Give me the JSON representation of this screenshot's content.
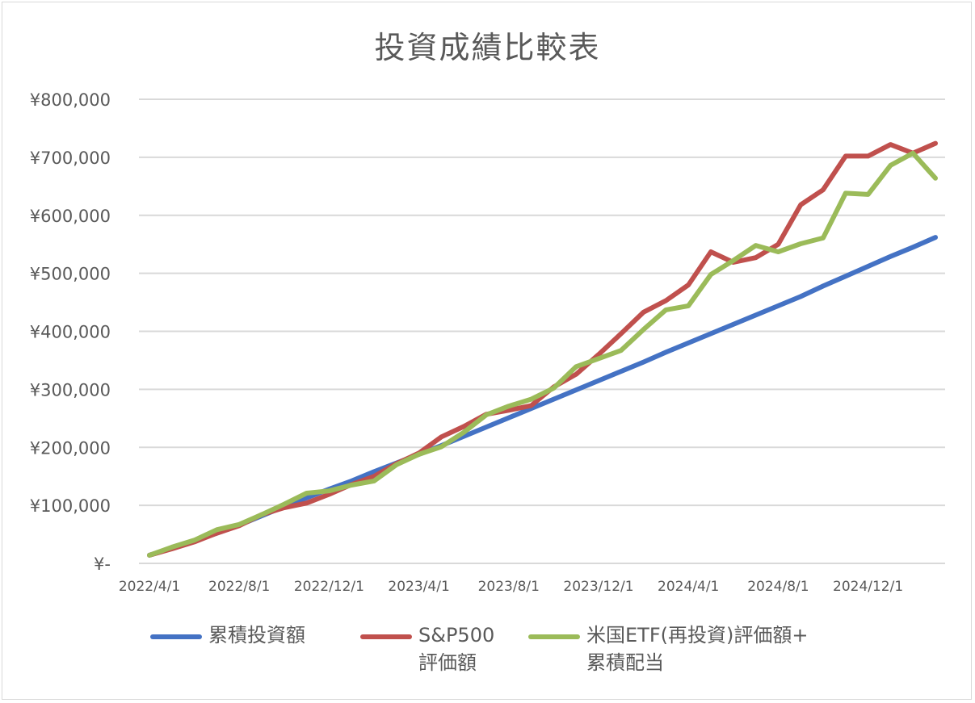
{
  "chart_data": {
    "type": "line",
    "title": "投資成績比較表",
    "xlabel": "",
    "ylabel": "",
    "ylim": [
      0,
      800000
    ],
    "y_ticks": [
      {
        "value": 0,
        "label": "¥-"
      },
      {
        "value": 100000,
        "label": "¥100,000"
      },
      {
        "value": 200000,
        "label": "¥200,000"
      },
      {
        "value": 300000,
        "label": "¥300,000"
      },
      {
        "value": 400000,
        "label": "¥400,000"
      },
      {
        "value": 500000,
        "label": "¥500,000"
      },
      {
        "value": 600000,
        "label": "¥600,000"
      },
      {
        "value": 700000,
        "label": "¥700,000"
      },
      {
        "value": 800000,
        "label": "¥800,000"
      }
    ],
    "x": [
      "2022/4/1",
      "2022/5/1",
      "2022/6/1",
      "2022/7/1",
      "2022/8/1",
      "2022/9/1",
      "2022/10/1",
      "2022/11/1",
      "2022/12/1",
      "2023/1/1",
      "2023/2/1",
      "2023/3/1",
      "2023/4/1",
      "2023/5/1",
      "2023/6/1",
      "2023/7/1",
      "2023/8/1",
      "2023/9/1",
      "2023/10/1",
      "2023/11/1",
      "2023/12/1",
      "2024/1/1",
      "2024/2/1",
      "2024/3/1",
      "2024/4/1",
      "2024/5/1",
      "2024/6/1",
      "2024/7/1",
      "2024/8/1",
      "2024/9/1",
      "2024/10/1",
      "2024/11/1",
      "2024/12/1",
      "2025/1/1",
      "2025/2/1",
      "2025/3/1"
    ],
    "x_tick_labels": [
      "2022/4/1",
      "2022/8/1",
      "2022/12/1",
      "2023/4/1",
      "2023/8/1",
      "2023/12/1",
      "2024/4/1",
      "2024/8/1",
      "2024/12/1"
    ],
    "grid": true,
    "legend_position": "bottom",
    "series": [
      {
        "name": "累積投資額",
        "color": "#4472c4",
        "values": [
          14000,
          26000,
          39000,
          52000,
          66000,
          82000,
          98000,
          113000,
          128000,
          142000,
          158000,
          173000,
          188000,
          203000,
          219000,
          235000,
          251000,
          267000,
          283000,
          299000,
          315000,
          331000,
          347000,
          364000,
          380000,
          396000,
          412000,
          428000,
          444000,
          460000,
          478000,
          495000,
          512000,
          529000,
          545000,
          562000
        ]
      },
      {
        "name": "S&P500\n評価額",
        "color": "#c0504d",
        "values": [
          14000,
          25000,
          37000,
          52000,
          65000,
          84000,
          96000,
          104000,
          119000,
          136000,
          150000,
          172000,
          190000,
          218000,
          236000,
          257000,
          264000,
          272000,
          304000,
          326000,
          360000,
          396000,
          433000,
          453000,
          480000,
          537000,
          519000,
          527000,
          550000,
          618000,
          644000,
          702000,
          702000,
          722000,
          707000,
          724000
        ]
      },
      {
        "name": "米国ETF(再投資)評価額+\n累積配当",
        "color": "#9bbb59",
        "values": [
          14000,
          28000,
          40000,
          58000,
          67000,
          84000,
          102000,
          121000,
          125000,
          135000,
          142000,
          170000,
          188000,
          201000,
          226000,
          256000,
          271000,
          283000,
          302000,
          339000,
          353000,
          367000,
          403000,
          437000,
          444000,
          498000,
          522000,
          548000,
          537000,
          551000,
          561000,
          638000,
          636000,
          686000,
          707000,
          664000
        ]
      }
    ]
  }
}
